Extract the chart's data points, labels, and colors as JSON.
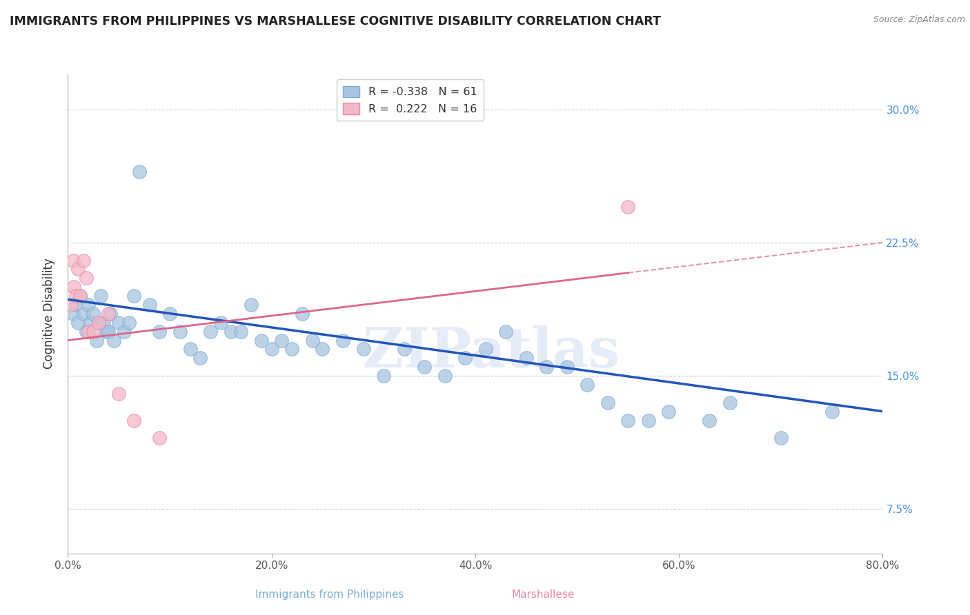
{
  "title": "IMMIGRANTS FROM PHILIPPINES VS MARSHALLESE COGNITIVE DISABILITY CORRELATION CHART",
  "source": "Source: ZipAtlas.com",
  "xlabel_blue": "Immigrants from Philippines",
  "xlabel_pink": "Marshallese",
  "ylabel": "Cognitive Disability",
  "xlim": [
    0.0,
    80.0
  ],
  "ylim": [
    5.0,
    32.0
  ],
  "xticks": [
    0.0,
    20.0,
    40.0,
    60.0,
    80.0
  ],
  "yticks": [
    7.5,
    15.0,
    22.5,
    30.0
  ],
  "xticklabels": [
    "0.0%",
    "20.0%",
    "40.0%",
    "60.0%",
    "80.0%"
  ],
  "yticklabels": [
    "7.5%",
    "15.0%",
    "22.5%",
    "30.0%"
  ],
  "R_blue": -0.338,
  "N_blue": 61,
  "R_pink": 0.222,
  "N_pink": 16,
  "blue_scatter_color": "#a8c4e0",
  "blue_edge_color": "#7aadd4",
  "pink_scatter_color": "#f4b8c8",
  "pink_edge_color": "#e888a0",
  "trend_blue": "#2255bb",
  "trend_pink": "#dd6688",
  "watermark": "ZIPatlas",
  "blue_scatter_x": [
    0.5,
    0.8,
    1.0,
    1.2,
    1.5,
    1.8,
    2.0,
    2.2,
    2.5,
    2.8,
    3.0,
    3.2,
    3.5,
    3.8,
    4.0,
    4.2,
    4.5,
    5.0,
    5.5,
    6.0,
    6.5,
    7.0,
    8.0,
    9.0,
    10.0,
    11.0,
    12.0,
    13.0,
    14.0,
    15.0,
    16.0,
    17.0,
    18.0,
    19.0,
    20.0,
    21.0,
    22.0,
    23.0,
    24.0,
    25.0,
    27.0,
    29.0,
    31.0,
    33.0,
    35.0,
    37.0,
    39.0,
    41.0,
    43.0,
    45.0,
    47.0,
    49.0,
    51.0,
    53.0,
    55.0,
    57.0,
    59.0,
    63.0,
    65.0,
    70.0,
    75.0
  ],
  "blue_scatter_y": [
    18.5,
    19.0,
    18.0,
    19.5,
    18.5,
    17.5,
    19.0,
    18.0,
    18.5,
    17.0,
    18.0,
    19.5,
    18.0,
    17.5,
    17.5,
    18.5,
    17.0,
    18.0,
    17.5,
    18.0,
    19.5,
    26.5,
    19.0,
    17.5,
    18.5,
    17.5,
    16.5,
    16.0,
    17.5,
    18.0,
    17.5,
    17.5,
    19.0,
    17.0,
    16.5,
    17.0,
    16.5,
    18.5,
    17.0,
    16.5,
    17.0,
    16.5,
    15.0,
    16.5,
    15.5,
    15.0,
    16.0,
    16.5,
    17.5,
    16.0,
    15.5,
    15.5,
    14.5,
    13.5,
    12.5,
    12.5,
    13.0,
    12.5,
    13.5,
    11.5,
    13.0
  ],
  "pink_scatter_x": [
    0.3,
    0.5,
    0.6,
    0.8,
    1.0,
    1.2,
    1.5,
    1.8,
    2.0,
    2.5,
    3.0,
    4.0,
    5.0,
    6.5,
    9.0,
    55.0
  ],
  "pink_scatter_y": [
    19.0,
    21.5,
    20.0,
    19.5,
    21.0,
    19.5,
    21.5,
    20.5,
    17.5,
    17.5,
    18.0,
    18.5,
    14.0,
    12.5,
    11.5,
    24.5
  ],
  "blue_trend_x0": 0.0,
  "blue_trend_y0": 19.3,
  "blue_trend_x1": 80.0,
  "blue_trend_y1": 13.0,
  "pink_trend_x0": 0.0,
  "pink_trend_y0": 17.0,
  "pink_solid_x1": 55.0,
  "pink_solid_y1": 20.8,
  "pink_dash_x1": 80.0,
  "pink_dash_y1": 22.5
}
